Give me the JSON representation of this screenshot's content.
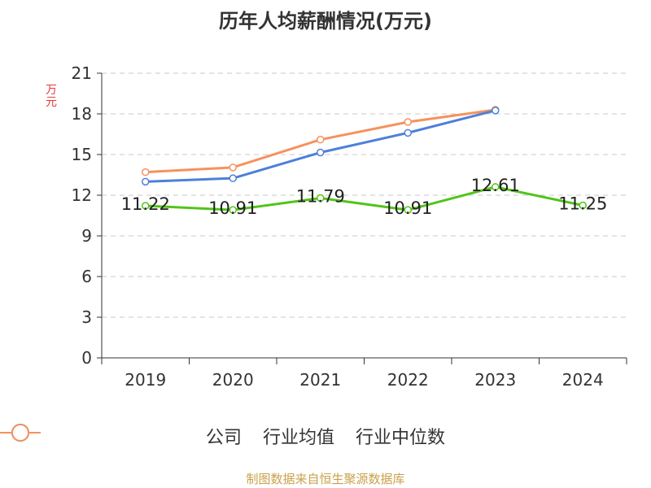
{
  "chart_data": {
    "type": "line",
    "title": "历年人均薪酬情况(万元)",
    "ylabel": "万元",
    "categories": [
      "2019",
      "2020",
      "2021",
      "2022",
      "2023",
      "2024"
    ],
    "ylim": [
      0,
      21
    ],
    "yticks": [
      0,
      3,
      6,
      9,
      12,
      15,
      18,
      21
    ],
    "grid": true,
    "legend_position": "bottom",
    "series": [
      {
        "name": "公司",
        "color": "#52c41a",
        "values": [
          11.22,
          10.91,
          11.79,
          10.91,
          12.61,
          11.25
        ],
        "labels": [
          "11.22",
          "10.91",
          "11.79",
          "10.91",
          "12.61",
          "11.25"
        ]
      },
      {
        "name": "行业均值",
        "color": "#4e7fd9",
        "values": [
          13.0,
          13.25,
          15.15,
          16.6,
          18.25,
          null
        ]
      },
      {
        "name": "行业中位数",
        "color": "#f5925e",
        "values": [
          13.7,
          14.05,
          16.1,
          17.4,
          18.3,
          null
        ]
      }
    ]
  },
  "source": "制图数据来自恒生聚源数据库"
}
